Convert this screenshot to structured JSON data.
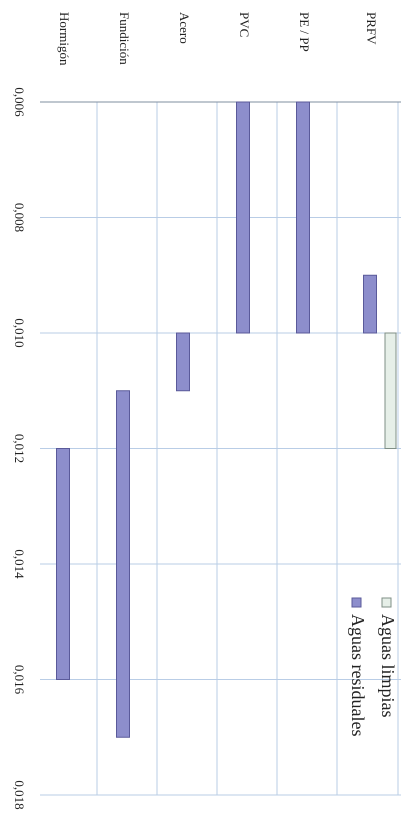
{
  "chart_data": {
    "type": "bar",
    "orientation": "floating-range",
    "rotated": "90deg-clockwise",
    "categories": [
      "PRFV",
      "PE / PP",
      "PVC",
      "Acero",
      "Fundición",
      "Hormigón"
    ],
    "series": [
      {
        "name": "Aguas limpias",
        "color": "#e6efe8",
        "stroke": "#7f8f86",
        "ranges": [
          {
            "category_span": [
              "PRFV",
              "PE / PP"
            ],
            "from": 0.01,
            "to": 0.012
          }
        ]
      },
      {
        "name": "Aguas residuales",
        "color": "#8d8ecc",
        "stroke": "#5a5a9a",
        "ranges": [
          {
            "category": "PRFV",
            "from": 0.009,
            "to": 0.01
          },
          {
            "category": "PE / PP",
            "from": 0.006,
            "to": 0.01
          },
          {
            "category": "PVC",
            "from": 0.006,
            "to": 0.01
          },
          {
            "category": "Acero",
            "from": 0.01,
            "to": 0.011
          },
          {
            "category": "Fundición",
            "from": 0.011,
            "to": 0.017
          },
          {
            "category": "Hormigón",
            "from": 0.012,
            "to": 0.016
          }
        ]
      }
    ],
    "value_axis": {
      "range": [
        0.006,
        0.018
      ],
      "ticks": [
        "0,006",
        "0,008",
        "0,010",
        "0,012",
        "0,014",
        "0,016",
        "0,018"
      ]
    },
    "grid": true,
    "legend_placement": "bottom-right"
  }
}
